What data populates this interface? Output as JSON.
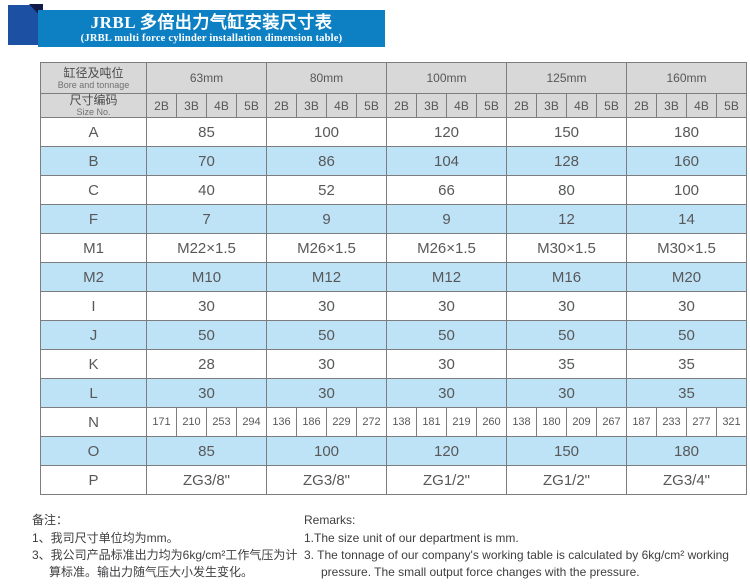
{
  "banner": {
    "title_zh": "JRBL 多倍出力气缸安装尺寸表",
    "title_en": "(JRBL multi force cylinder installation dimension table)"
  },
  "table": {
    "corner_row1_zh": "缸径及吨位",
    "corner_row1_en": "Bore and tonnage",
    "corner_row2_zh": "尺寸编码",
    "corner_row2_en": "Size No.",
    "sizes": [
      "63mm",
      "80mm",
      "100mm",
      "125mm",
      "160mm"
    ],
    "size_codes": [
      "2B",
      "3B",
      "4B",
      "5B"
    ],
    "rows": [
      {
        "label": "A",
        "type": "merged",
        "values": [
          "85",
          "100",
          "120",
          "150",
          "180"
        ]
      },
      {
        "label": "B",
        "type": "merged",
        "values": [
          "70",
          "86",
          "104",
          "128",
          "160"
        ]
      },
      {
        "label": "C",
        "type": "merged",
        "values": [
          "40",
          "52",
          "66",
          "80",
          "100"
        ]
      },
      {
        "label": "F",
        "type": "merged",
        "values": [
          "7",
          "9",
          "9",
          "12",
          "14"
        ]
      },
      {
        "label": "M1",
        "type": "merged",
        "values": [
          "M22×1.5",
          "M26×1.5",
          "M26×1.5",
          "M30×1.5",
          "M30×1.5"
        ]
      },
      {
        "label": "M2",
        "type": "merged",
        "values": [
          "M10",
          "M12",
          "M12",
          "M16",
          "M20"
        ]
      },
      {
        "label": "I",
        "type": "merged",
        "values": [
          "30",
          "30",
          "30",
          "30",
          "30"
        ]
      },
      {
        "label": "J",
        "type": "merged",
        "values": [
          "50",
          "50",
          "50",
          "50",
          "50"
        ]
      },
      {
        "label": "K",
        "type": "merged",
        "values": [
          "28",
          "30",
          "30",
          "35",
          "35"
        ]
      },
      {
        "label": "L",
        "type": "merged",
        "values": [
          "30",
          "30",
          "30",
          "30",
          "35"
        ]
      },
      {
        "label": "N",
        "type": "per_code",
        "values": [
          [
            "171",
            "210",
            "253",
            "294"
          ],
          [
            "136",
            "186",
            "229",
            "272"
          ],
          [
            "138",
            "181",
            "219",
            "260"
          ],
          [
            "138",
            "180",
            "209",
            "267"
          ],
          [
            "187",
            "233",
            "277",
            "321"
          ]
        ]
      },
      {
        "label": "O",
        "type": "merged",
        "values": [
          "85",
          "100",
          "120",
          "150",
          "180"
        ]
      },
      {
        "label": "P",
        "type": "merged",
        "values": [
          "ZG3/8\"",
          "ZG3/8\"",
          "ZG1/2\"",
          "ZG1/2\"",
          "ZG3/4\""
        ]
      }
    ]
  },
  "notes_zh": {
    "title": "备注：",
    "items": [
      "1、我司尺寸单位均为mm。",
      "3、我公司产品标准出力均为6kg/cm²工作气压为计算标准。输出力随气压大小发生变化。"
    ]
  },
  "notes_en": {
    "title": "Remarks:",
    "items": [
      "1.The size unit of our department is mm.",
      "3. The tonnage of our company's working table is calculated by 6kg/cm² working pressure. The small output force changes with the pressure."
    ]
  },
  "colors": {
    "banner_blue": "#0d80c3",
    "square_blue": "#1c50a3",
    "fold_navy": "#121a4a",
    "header_gray": "#d8d8d8",
    "row_blue": "#bfe3f6"
  }
}
